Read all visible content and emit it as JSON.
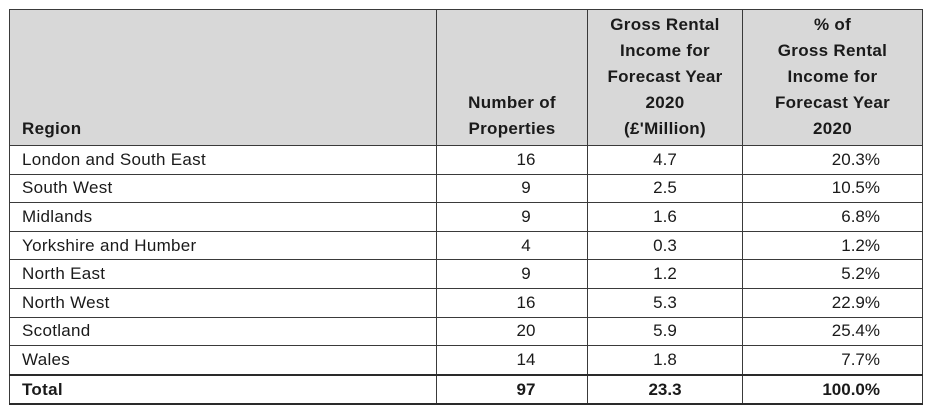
{
  "table": {
    "headers": {
      "region": [
        "Region"
      ],
      "properties": [
        "Number of",
        "Properties"
      ],
      "income": [
        "Gross Rental",
        "Income for",
        "Forecast Year",
        "2020",
        "(£'Million)"
      ],
      "percent": [
        "% of",
        "Gross Rental",
        "Income for",
        "Forecast Year",
        "2020"
      ]
    },
    "rows": [
      {
        "region": "London and South East",
        "properties": "16",
        "income": "4.7",
        "percent": "20.3%"
      },
      {
        "region": "South West",
        "properties": "9",
        "income": "2.5",
        "percent": "10.5%"
      },
      {
        "region": "Midlands",
        "properties": "9",
        "income": "1.6",
        "percent": "6.8%"
      },
      {
        "region": "Yorkshire and Humber",
        "properties": "4",
        "income": "0.3",
        "percent": "1.2%"
      },
      {
        "region": "North East",
        "properties": "9",
        "income": "1.2",
        "percent": "5.2%"
      },
      {
        "region": "North West",
        "properties": "16",
        "income": "5.3",
        "percent": "22.9%"
      },
      {
        "region": "Scotland",
        "properties": "20",
        "income": "5.9",
        "percent": "25.4%"
      },
      {
        "region": "Wales",
        "properties": "14",
        "income": "1.8",
        "percent": "7.7%"
      }
    ],
    "total": {
      "region": "Total",
      "properties": "97",
      "income": "23.3",
      "percent": "100.0%"
    }
  }
}
